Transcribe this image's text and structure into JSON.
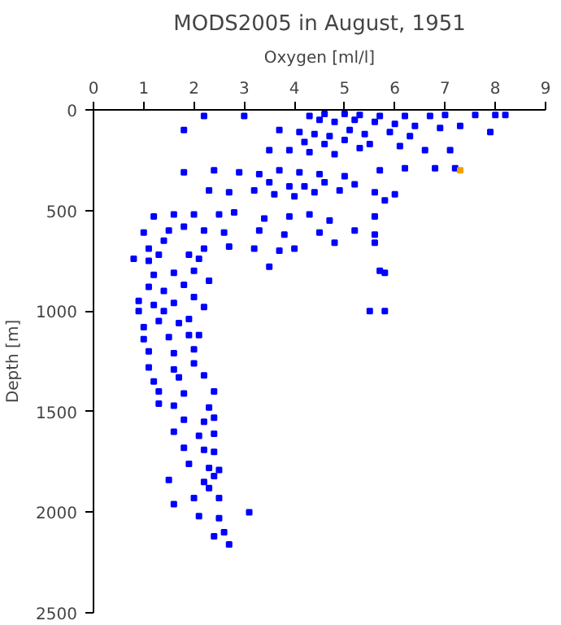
{
  "chart_data": {
    "type": "scatter",
    "title": "MODS2005 in August, 1951",
    "xlabel": "Oxygen [ml/l]",
    "ylabel": "Depth [m]",
    "xlim": [
      0,
      9
    ],
    "xticks": [
      0,
      1,
      2,
      3,
      4,
      5,
      6,
      7,
      8,
      9
    ],
    "ylim": [
      2500,
      0
    ],
    "yticks": [
      0,
      500,
      1000,
      1500,
      2000,
      2500
    ],
    "grid": false,
    "marker": "square",
    "series": [
      {
        "color": "#0000ff",
        "x": [
          2.2,
          3,
          4.3,
          4.6,
          5,
          5.3,
          5.7,
          6.2,
          6.7,
          7,
          7.6,
          8,
          8.2,
          4.5,
          4.8,
          5.2,
          5.6,
          6,
          6.4,
          6.9,
          7.3,
          7.9,
          1.8,
          3.7,
          4.1,
          4.4,
          4.7,
          5.1,
          5.4,
          5.9,
          6.3,
          4.2,
          4.6,
          5,
          5.5,
          6.1,
          6.6,
          7.1,
          3.5,
          3.9,
          4.3,
          4.8,
          5.3,
          6.8,
          7.2,
          6.2,
          1.8,
          2.4,
          2.9,
          3.3,
          3.7,
          4.1,
          4.5,
          5,
          5.7,
          3.5,
          3.9,
          4.2,
          4.6,
          5.2,
          2.3,
          2.7,
          3.2,
          3.6,
          4,
          4.4,
          4.9,
          5.6,
          6,
          5.8,
          1.2,
          1.6,
          2,
          2.5,
          2.8,
          3.4,
          3.9,
          4.3,
          4.7,
          5.6,
          1,
          1.5,
          1.8,
          2.2,
          2.6,
          3.3,
          3.8,
          4.5,
          5.2,
          5.6,
          1.1,
          1.4,
          2.2,
          2.7,
          3.2,
          3.7,
          4,
          4.8,
          5.6,
          0.8,
          1.1,
          1.3,
          1.9,
          2.1,
          3.5,
          5.7,
          5.8,
          1.2,
          1.6,
          2,
          1.1,
          1.4,
          1.8,
          2.3,
          0.9,
          1.2,
          1.6,
          2,
          2.2,
          5.5,
          5.8,
          0.9,
          1.4,
          1,
          1.3,
          1.7,
          1.9,
          1,
          1.5,
          1.9,
          2.1,
          1.1,
          1.6,
          2,
          1.1,
          1.6,
          2,
          1.2,
          1.7,
          2.2,
          1.3,
          1.8,
          2.4,
          1.3,
          1.6,
          2.3,
          1.8,
          2.2,
          2.4,
          1.6,
          2.1,
          2.4,
          1.8,
          2.2,
          2.4,
          1.9,
          2.3,
          2.5,
          1.5,
          2.4,
          2.3,
          2,
          2.5,
          1.6,
          3.1,
          2.1,
          2.5,
          2.6,
          2.4,
          2.7,
          2.2
        ],
        "values": [
          30,
          30,
          30,
          20,
          20,
          25,
          30,
          30,
          30,
          25,
          25,
          25,
          25,
          50,
          60,
          50,
          60,
          70,
          80,
          90,
          80,
          110,
          100,
          100,
          110,
          120,
          130,
          100,
          120,
          110,
          130,
          160,
          170,
          150,
          170,
          180,
          200,
          200,
          200,
          200,
          210,
          220,
          190,
          290,
          290,
          290,
          310,
          300,
          310,
          320,
          300,
          310,
          320,
          330,
          300,
          360,
          380,
          380,
          360,
          370,
          400,
          410,
          400,
          420,
          430,
          410,
          400,
          410,
          420,
          450,
          530,
          520,
          520,
          520,
          510,
          540,
          530,
          520,
          550,
          530,
          610,
          600,
          580,
          600,
          610,
          600,
          620,
          610,
          600,
          620,
          690,
          650,
          690,
          680,
          690,
          700,
          690,
          660,
          660,
          740,
          750,
          720,
          720,
          740,
          780,
          800,
          810,
          820,
          810,
          800,
          880,
          900,
          870,
          850,
          950,
          970,
          960,
          930,
          980,
          1000,
          1000,
          1000,
          1000,
          1080,
          1050,
          1060,
          1040,
          1140,
          1130,
          1120,
          1120,
          1200,
          1210,
          1190,
          1280,
          1290,
          1260,
          1350,
          1330,
          1320,
          1400,
          1410,
          1400,
          1460,
          1470,
          1480,
          1540,
          1550,
          1530,
          1600,
          1620,
          1610,
          1680,
          1690,
          1700,
          1760,
          1780,
          1790,
          1840,
          1820,
          1880,
          1930,
          1930,
          1960,
          2000,
          2020,
          2030,
          2100,
          2120,
          2160,
          1850
        ]
      },
      {
        "color": "#f0a000",
        "x": [
          7.3
        ],
        "values": [
          300
        ]
      }
    ]
  }
}
